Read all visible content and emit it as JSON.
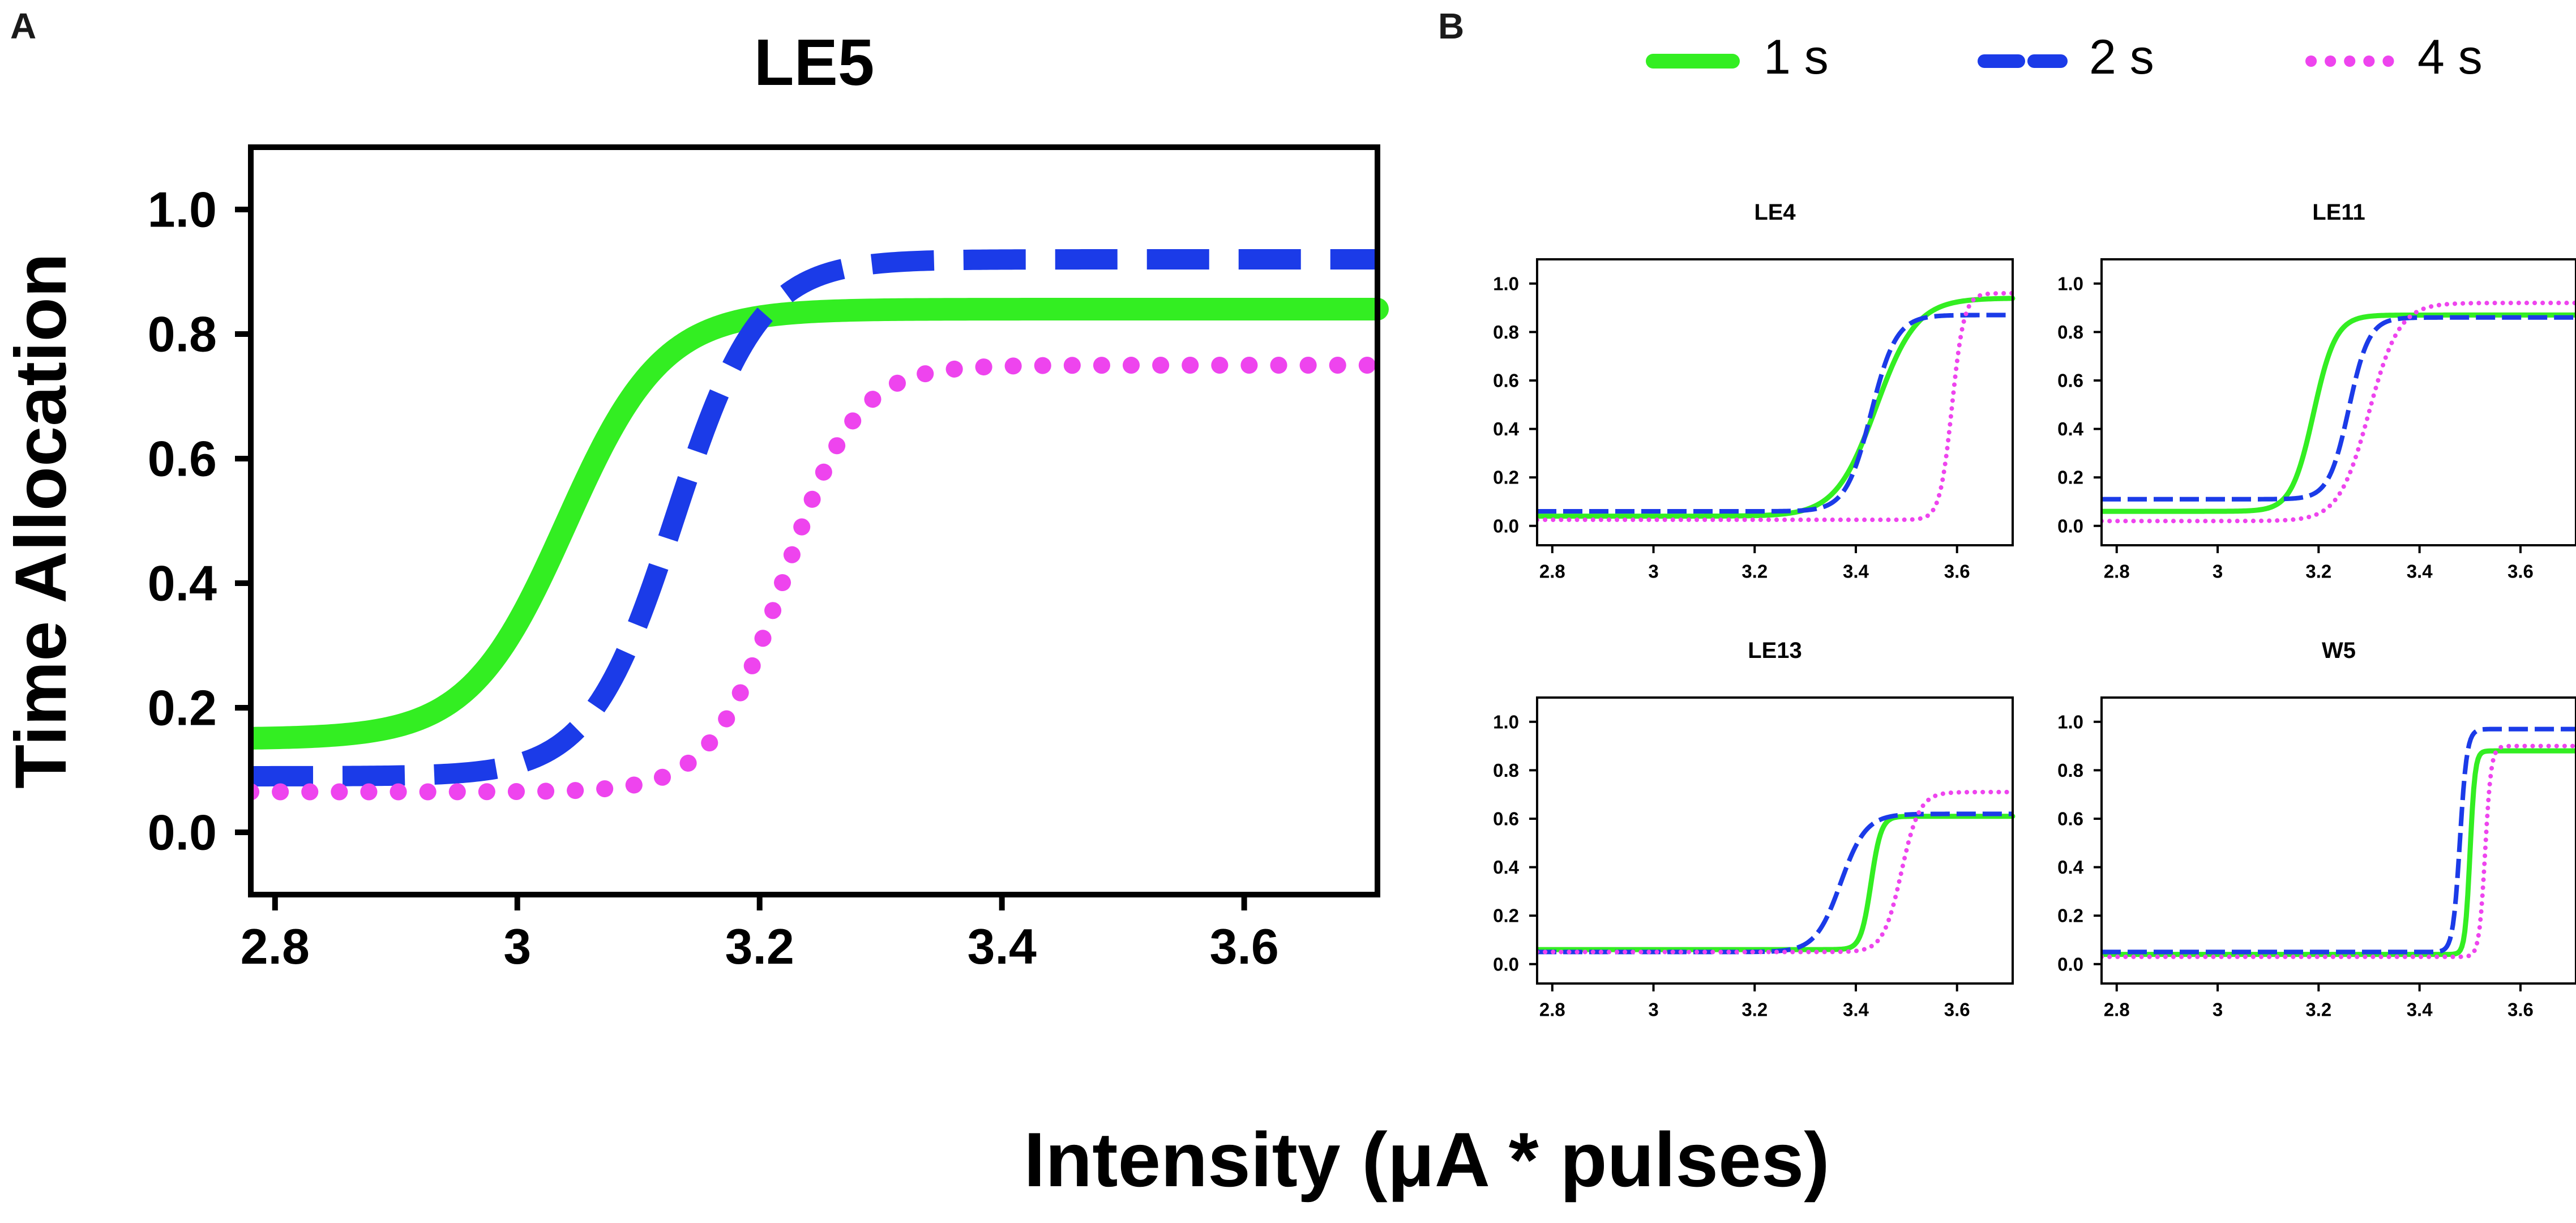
{
  "figure": {
    "panel_a_label": "A",
    "panel_b_label": "B",
    "shared_xlabel": "Intensity (μA * pulses)"
  },
  "legend": [
    {
      "label": "1 s",
      "color": "#33ee22",
      "style": "solid"
    },
    {
      "label": "2 s",
      "color": "#1b3be8",
      "style": "dashed"
    },
    {
      "label": "4 s",
      "color": "#ee44ee",
      "style": "dotted"
    }
  ],
  "chart_data": [
    {
      "id": "LE5",
      "type": "line",
      "title": "LE5",
      "xlabel": "",
      "ylabel": "Time Allocation",
      "xlim": [
        2.78,
        3.71
      ],
      "ylim": [
        -0.1,
        1.1
      ],
      "xticks": [
        2.8,
        3.0,
        3.2,
        3.4,
        3.6
      ],
      "xtick_labels": [
        "2.8",
        "3",
        "3.2",
        "3.4",
        "3.6"
      ],
      "yticks": [
        0.0,
        0.2,
        0.4,
        0.6,
        0.8,
        1.0
      ],
      "ytick_labels": [
        "0.0",
        "0.2",
        "0.4",
        "0.6",
        "0.8",
        "1.0"
      ],
      "series": [
        {
          "name": "1 s",
          "bottom": 0.15,
          "top": 0.84,
          "x50": 3.04,
          "slope": 0.04
        },
        {
          "name": "2 s",
          "bottom": 0.09,
          "top": 0.92,
          "x50": 3.13,
          "slope": 0.035
        },
        {
          "name": "4 s",
          "bottom": 0.065,
          "top": 0.75,
          "x50": 3.22,
          "slope": 0.03
        }
      ]
    },
    {
      "id": "LE4",
      "type": "line",
      "title": "LE4",
      "xlim": [
        2.77,
        3.71
      ],
      "ylim": [
        -0.08,
        1.1
      ],
      "xticks": [
        2.8,
        3.0,
        3.2,
        3.4,
        3.6
      ],
      "xtick_labels": [
        "2.8",
        "3",
        "3.2",
        "3.4",
        "3.6"
      ],
      "yticks": [
        0.0,
        0.2,
        0.4,
        0.6,
        0.8,
        1.0
      ],
      "ytick_labels": [
        "0.0",
        "0.2",
        "0.4",
        "0.6",
        "0.8",
        "1.0"
      ],
      "series": [
        {
          "name": "1 s",
          "bottom": 0.04,
          "top": 0.94,
          "x50": 3.44,
          "slope": 0.04
        },
        {
          "name": "2 s",
          "bottom": 0.06,
          "top": 0.87,
          "x50": 3.43,
          "slope": 0.025
        },
        {
          "name": "4 s",
          "bottom": 0.025,
          "top": 0.96,
          "x50": 3.59,
          "slope": 0.012
        }
      ]
    },
    {
      "id": "LE11",
      "type": "line",
      "title": "LE11",
      "xlim": [
        2.77,
        3.71
      ],
      "ylim": [
        -0.08,
        1.1
      ],
      "xticks": [
        2.8,
        3.0,
        3.2,
        3.4,
        3.6
      ],
      "xtick_labels": [
        "2.8",
        "3",
        "3.2",
        "3.4",
        "3.6"
      ],
      "yticks": [
        0.0,
        0.2,
        0.4,
        0.6,
        0.8,
        1.0
      ],
      "ytick_labels": [
        "0.0",
        "0.2",
        "0.4",
        "0.6",
        "0.8",
        "1.0"
      ],
      "series": [
        {
          "name": "1 s",
          "bottom": 0.06,
          "top": 0.87,
          "x50": 3.19,
          "slope": 0.022
        },
        {
          "name": "2 s",
          "bottom": 0.11,
          "top": 0.86,
          "x50": 3.26,
          "slope": 0.02
        },
        {
          "name": "4 s",
          "bottom": 0.02,
          "top": 0.92,
          "x50": 3.3,
          "slope": 0.03
        }
      ]
    },
    {
      "id": "LE13",
      "type": "line",
      "title": "LE13",
      "xlim": [
        2.77,
        3.71
      ],
      "ylim": [
        -0.08,
        1.1
      ],
      "xticks": [
        2.8,
        3.0,
        3.2,
        3.4,
        3.6
      ],
      "xtick_labels": [
        "2.8",
        "3",
        "3.2",
        "3.4",
        "3.6"
      ],
      "yticks": [
        0.0,
        0.2,
        0.4,
        0.6,
        0.8,
        1.0
      ],
      "ytick_labels": [
        "0.0",
        "0.2",
        "0.4",
        "0.6",
        "0.8",
        "1.0"
      ],
      "series": [
        {
          "name": "1 s",
          "bottom": 0.06,
          "top": 0.61,
          "x50": 3.43,
          "slope": 0.01
        },
        {
          "name": "2 s",
          "bottom": 0.05,
          "top": 0.62,
          "x50": 3.37,
          "slope": 0.025
        },
        {
          "name": "4 s",
          "bottom": 0.05,
          "top": 0.71,
          "x50": 3.49,
          "slope": 0.018
        }
      ]
    },
    {
      "id": "W5",
      "type": "line",
      "title": "W5",
      "xlim": [
        2.77,
        3.71
      ],
      "ylim": [
        -0.08,
        1.1
      ],
      "xticks": [
        2.8,
        3.0,
        3.2,
        3.4,
        3.6
      ],
      "xtick_labels": [
        "2.8",
        "3",
        "3.2",
        "3.4",
        "3.6"
      ],
      "yticks": [
        0.0,
        0.2,
        0.4,
        0.6,
        0.8,
        1.0
      ],
      "ytick_labels": [
        "0.0",
        "0.2",
        "0.4",
        "0.6",
        "0.8",
        "1.0"
      ],
      "series": [
        {
          "name": "1 s",
          "bottom": 0.04,
          "top": 0.88,
          "x50": 3.5,
          "slope": 0.005
        },
        {
          "name": "2 s",
          "bottom": 0.05,
          "top": 0.97,
          "x50": 3.48,
          "slope": 0.007
        },
        {
          "name": "4 s",
          "bottom": 0.03,
          "top": 0.9,
          "x50": 3.53,
          "slope": 0.006
        }
      ]
    }
  ]
}
